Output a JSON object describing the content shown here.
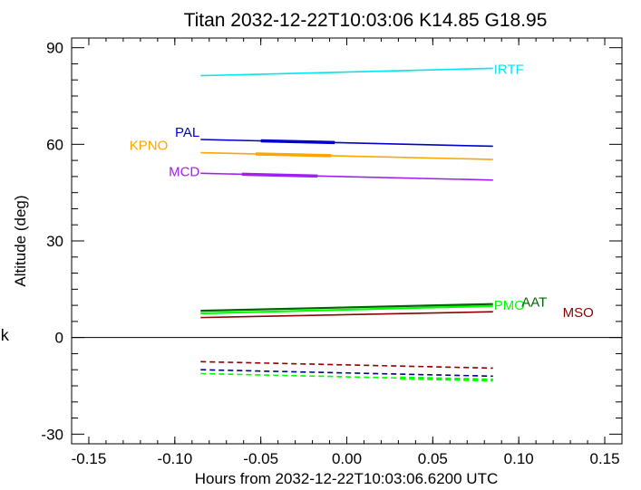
{
  "chart_data": {
    "type": "line",
    "title": "Titan 2032-12-22T10:03:06  K14.85  G18.95",
    "xlabel": "Hours from 2032-12-22T10:03:06.6200 UTC",
    "ylabel": "Altitude (deg)",
    "xlim": [
      -0.16,
      0.16
    ],
    "ylim": [
      -33,
      93
    ],
    "xticks": [
      -0.15,
      -0.1,
      -0.05,
      0.0,
      0.05,
      0.1,
      0.15
    ],
    "xtick_labels": [
      "-0.15",
      "-0.10",
      "-0.05",
      "0.00",
      "0.05",
      "0.10",
      "0.15"
    ],
    "yticks": [
      -30,
      0,
      30,
      60,
      90
    ],
    "ytick_labels": [
      "-30",
      "0",
      "30",
      "60",
      "90"
    ],
    "zero_line": true,
    "grid": false,
    "side_label": "k",
    "series": [
      {
        "name": "IRTF",
        "color": "#00e5ee",
        "style": "solid",
        "x": [
          -0.085,
          0.085
        ],
        "y": [
          81.3,
          83.6
        ],
        "label_at": [
          0.085,
          83.6
        ]
      },
      {
        "name": "PAL",
        "color": "#0000cd",
        "style": "solid",
        "x": [
          -0.085,
          0.085
        ],
        "y": [
          61.5,
          59.4
        ],
        "thick": [
          -0.05,
          -0.007
        ],
        "label_at": [
          -0.085,
          61.5
        ]
      },
      {
        "name": "KPNO",
        "color": "#ffa500",
        "style": "solid",
        "x": [
          -0.085,
          0.085
        ],
        "y": [
          57.4,
          55.3
        ],
        "thick": [
          -0.053,
          -0.009
        ],
        "label_at": [
          -0.085,
          57.4
        ]
      },
      {
        "name": "MCD",
        "color": "#a020f0",
        "style": "solid",
        "x": [
          -0.085,
          0.085
        ],
        "y": [
          51.0,
          48.9
        ],
        "thick": [
          -0.061,
          -0.017
        ],
        "label_at": [
          -0.085,
          51.0
        ]
      },
      {
        "name": "PMO",
        "color": "#00ff00",
        "style": "solid",
        "x": [
          -0.085,
          0.085
        ],
        "y": [
          7.5,
          9.8
        ],
        "label_at": [
          0.085,
          9.8
        ]
      },
      {
        "name": "AAT",
        "color": "#006400",
        "style": "solid",
        "x": [
          -0.085,
          0.085
        ],
        "y": [
          8.3,
          10.4
        ],
        "label_at": [
          0.1,
          10.4
        ]
      },
      {
        "name": "MSO",
        "color": "#8b0000",
        "style": "solid",
        "x": [
          -0.085,
          0.085
        ],
        "y": [
          6.2,
          8.0
        ],
        "label_at": [
          0.125,
          8.0
        ]
      },
      {
        "name": "",
        "color": "#8b0000",
        "style": "dashed",
        "x": [
          -0.085,
          0.085
        ],
        "y": [
          -7.5,
          -9.5
        ]
      },
      {
        "name": "",
        "color": "#000080",
        "style": "dashed",
        "x": [
          -0.085,
          0.085
        ],
        "y": [
          -10.0,
          -12.0
        ]
      },
      {
        "name": "",
        "color": "#00ff00",
        "style": "dashed",
        "x": [
          -0.085,
          0.085
        ],
        "y": [
          -11.2,
          -13.2
        ],
        "thick": [
          0.031,
          0.085
        ]
      }
    ]
  }
}
